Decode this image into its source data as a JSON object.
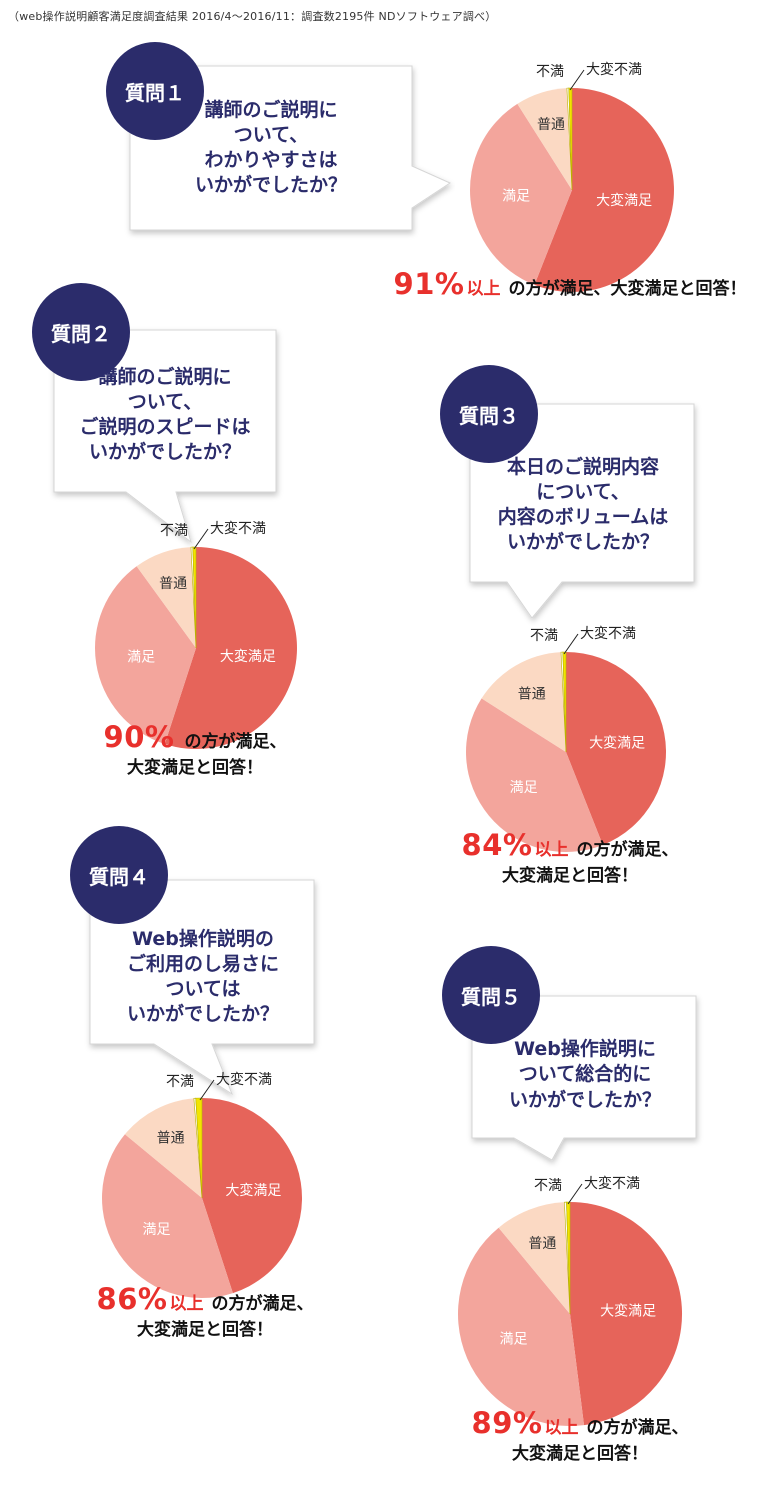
{
  "caption": "（web操作説明顧客満足度調査結果 2016/4〜2016/11：調査数2195件 NDソフトウェア調べ）",
  "colors": {
    "badge": "#2b2c6b",
    "question_text": "#2b2c6b",
    "highlight": "#e8302c",
    "very_satisfied": "#e6645a",
    "satisfied": "#f3a59c",
    "neutral": "#fbd9c3",
    "dissatisfied": "#ffffff",
    "very_dissatisfied": "#f2e400"
  },
  "questions": [
    {
      "badge": "質問１",
      "text": "講師のご説明に\nついて、\nわかりやすさは\nいかがでしたか？",
      "result": {
        "percent": "91%",
        "suffix": "以上",
        "line1": "の方が満足、大変満足と回答！",
        "line2": ""
      }
    },
    {
      "badge": "質問２",
      "text": "講師のご説明に\nついて、\nご説明のスピードは\nいかがでしたか？",
      "result": {
        "percent": "90%",
        "suffix": "",
        "line1": "の方が満足、",
        "line2": "大変満足と回答！"
      }
    },
    {
      "badge": "質問３",
      "text": "本日のご説明内容\nについて、\n内容のボリュームは\nいかがでしたか？",
      "result": {
        "percent": "84%",
        "suffix": "以上",
        "line1": "の方が満足、",
        "line2": "大変満足と回答！"
      }
    },
    {
      "badge": "質問４",
      "text": "Web操作説明の\nご利用のし易さに\nついては\nいかがでしたか？",
      "result": {
        "percent": "86%",
        "suffix": "以上",
        "line1": "の方が満足、",
        "line2": "大変満足と回答！"
      }
    },
    {
      "badge": "質問５",
      "text": "Web操作説明に\nついて総合的に\nいかがでしたか？",
      "result": {
        "percent": "89%",
        "suffix": "以上",
        "line1": "の方が満足、",
        "line2": "大変満足と回答！"
      }
    }
  ],
  "chart_data": [
    {
      "type": "pie",
      "title": "質問１",
      "categories": [
        "大変満足",
        "満足",
        "普通",
        "不満",
        "大変不満"
      ],
      "values": [
        56,
        35,
        8.2,
        0.3,
        0.5
      ]
    },
    {
      "type": "pie",
      "title": "質問２",
      "categories": [
        "大変満足",
        "満足",
        "普通",
        "不満",
        "大変不満"
      ],
      "values": [
        55,
        35,
        9.2,
        0.3,
        0.5
      ]
    },
    {
      "type": "pie",
      "title": "質問３",
      "categories": [
        "大変満足",
        "満足",
        "普通",
        "不満",
        "大変不満"
      ],
      "values": [
        44,
        40,
        15.2,
        0.3,
        0.5
      ]
    },
    {
      "type": "pie",
      "title": "質問４",
      "categories": [
        "大変満足",
        "満足",
        "普通",
        "不満",
        "大変不満"
      ],
      "values": [
        45,
        41,
        12.7,
        0.3,
        1.0
      ]
    },
    {
      "type": "pie",
      "title": "質問５",
      "categories": [
        "大変満足",
        "満足",
        "普通",
        "不満",
        "大変不満"
      ],
      "values": [
        48,
        41,
        10.2,
        0.3,
        0.5
      ]
    }
  ]
}
